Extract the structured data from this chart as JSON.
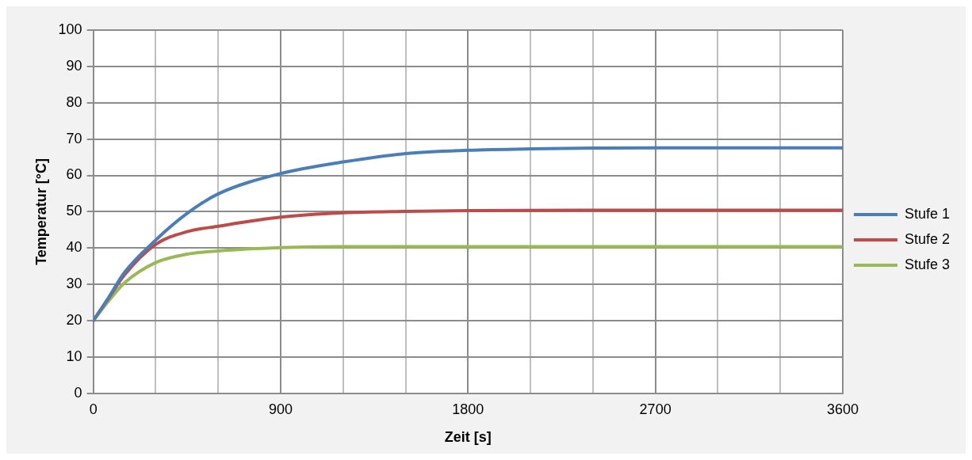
{
  "chart_data": {
    "type": "line",
    "xlabel": "Zeit [s]",
    "ylabel": "Temperatur [°C]",
    "xlim": [
      0,
      3600
    ],
    "xticks": [
      0,
      {
        "value": 300,
        "label": null
      },
      {
        "value": 600,
        "label": null
      },
      900,
      {
        "value": 1200,
        "label": null
      },
      {
        "value": 1500,
        "label": null
      },
      1800,
      {
        "value": 2100,
        "label": null
      },
      {
        "value": 2400,
        "label": null
      },
      2700,
      {
        "value": 3000,
        "label": null
      },
      {
        "value": 3300,
        "label": null
      },
      3600
    ],
    "ylim": [
      0,
      100
    ],
    "yticks": [
      0,
      10,
      20,
      30,
      40,
      50,
      60,
      70,
      80,
      90,
      100
    ],
    "grid": true,
    "legend": "right",
    "marker": "none",
    "line_style": "solid",
    "series": [
      {
        "name": "Stufe 1",
        "color": "#4a7ebb",
        "x": [
          0,
          75,
          150,
          300,
          450,
          600,
          900,
          1200,
          1500,
          1800,
          2100,
          2400,
          2700,
          3000,
          3600
        ],
        "values": [
          20,
          26.5,
          33.3,
          42.2,
          49.5,
          54.9,
          60.5,
          63.7,
          66.0,
          66.9,
          67.3,
          67.5,
          67.6,
          67.6,
          67.6
        ]
      },
      {
        "name": "Stufe 2",
        "color": "#be4b48",
        "x": [
          0,
          75,
          150,
          300,
          450,
          600,
          900,
          1200,
          1500,
          1800,
          2400,
          3600
        ],
        "values": [
          20,
          26.3,
          32.6,
          41.0,
          44.5,
          46.0,
          48.5,
          49.7,
          50.1,
          50.3,
          50.4,
          50.4
        ]
      },
      {
        "name": "Stufe 3",
        "color": "#98b954",
        "x": [
          0,
          75,
          150,
          300,
          450,
          600,
          900,
          1200,
          1800,
          3600
        ],
        "values": [
          20,
          25.5,
          30.4,
          36.0,
          38.3,
          39.2,
          40.1,
          40.4,
          40.4,
          40.4
        ]
      }
    ]
  }
}
